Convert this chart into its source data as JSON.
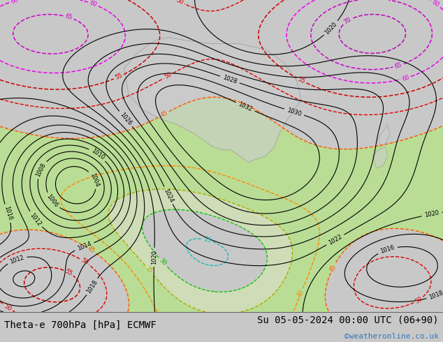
{
  "title_left": "Theta-e 700hPa [hPa] ECMWF",
  "title_right": "Su 05-05-2024 00:00 UTC (06+90)",
  "watermark": "©weatheronline.co.uk",
  "bg_color": "#c8c8c8",
  "map_bg": "#e0e0e0",
  "green_fill": "#b8e090",
  "light_green": "#d4edaa",
  "border_color": "#aaaaaa",
  "text_color_left": "#000000",
  "text_color_right": "#000000",
  "watermark_color": "#3377bb",
  "font_size_title": 10,
  "font_size_watermark": 8,
  "figsize": [
    6.34,
    4.9
  ],
  "dpi": 100,
  "isobar_color": "#000000",
  "isobar_linewidth": 0.8,
  "theta_linewidth": 1.0,
  "label_fontsize": 6
}
